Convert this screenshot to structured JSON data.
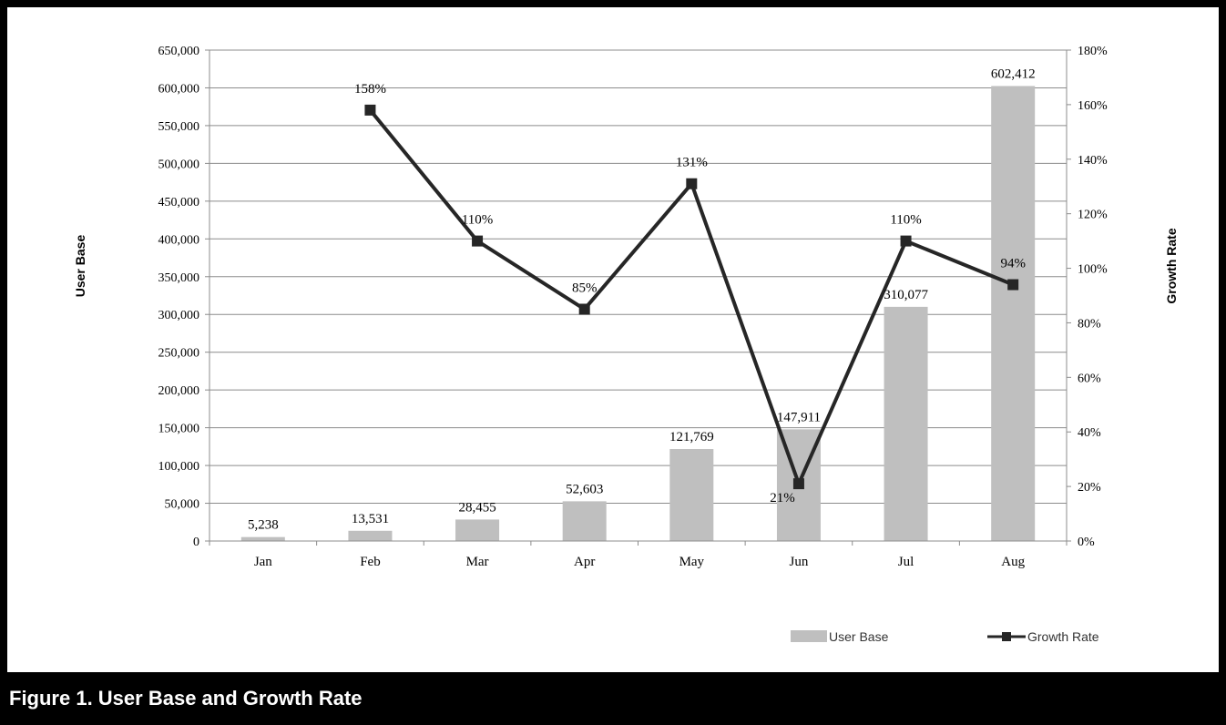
{
  "caption": "Figure 1.  User Base and Growth Rate",
  "chart_data": {
    "type": "bar",
    "categories": [
      "Jan",
      "Feb",
      "Mar",
      "Apr",
      "May",
      "Jun",
      "Jul",
      "Aug"
    ],
    "series": [
      {
        "name": "User Base",
        "type": "bar",
        "axis": "left",
        "color": "#bfbfbf",
        "values": [
          5238,
          13531,
          28455,
          52603,
          121769,
          147911,
          310077,
          602412
        ],
        "labels": [
          "5,238",
          "13,531",
          "28,455",
          "52,603",
          "121,769",
          "147,911",
          "310,077",
          "602,412"
        ]
      },
      {
        "name": "Growth Rate",
        "type": "line",
        "axis": "right",
        "color": "#262626",
        "values": [
          null,
          158,
          110,
          85,
          131,
          21,
          110,
          94
        ],
        "labels": [
          "",
          "158%",
          "110%",
          "85%",
          "131%",
          "21%",
          "110%",
          "94%"
        ]
      }
    ],
    "ylabel": "User Base",
    "y2label": "Growth Rate",
    "ylim": [
      0,
      650000
    ],
    "y2lim": [
      0,
      180
    ],
    "yticks": [
      "0",
      "50,000",
      "100,000",
      "150,000",
      "200,000",
      "250,000",
      "300,000",
      "350,000",
      "400,000",
      "450,000",
      "500,000",
      "550,000",
      "600,000",
      "650,000"
    ],
    "y2ticks": [
      "0%",
      "20%",
      "40%",
      "60%",
      "80%",
      "100%",
      "120%",
      "140%",
      "160%",
      "180%"
    ],
    "grid": true,
    "legend_position": "bottom-right"
  }
}
